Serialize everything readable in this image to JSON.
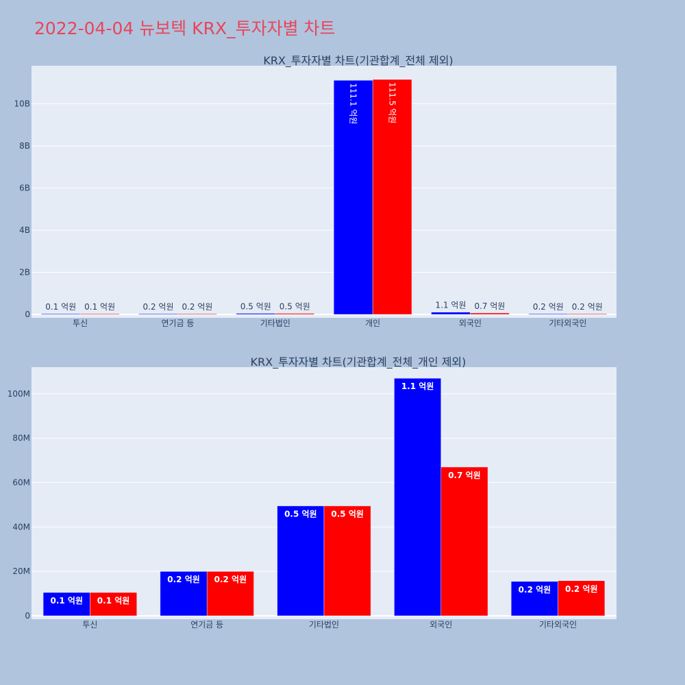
{
  "page_title": "2022-04-04 뉴보텍 KRX_투자자별 차트",
  "colors": {
    "page_background": "#b0c4de",
    "plot_background": "#e5ecf6",
    "title": "#e8455a",
    "text": "#2a3f5f",
    "series_buy": "#0000ff",
    "series_sell": "#ff0000"
  },
  "chart_data": [
    {
      "type": "bar",
      "title": "KRX_투자자별 차트(기관합계_전체 제외)",
      "categories": [
        "투신",
        "연기금 등",
        "기타법인",
        "개인",
        "외국인",
        "기타외국인"
      ],
      "series": [
        {
          "color": "#0000ff",
          "values": [
            10000000,
            20000000,
            49000000,
            11110000000,
            107000000,
            15000000
          ],
          "labels": [
            "0.1 억원",
            "0.2 억원",
            "0.5 억원",
            "111.1 억원",
            "1.1 억원",
            "0.2 억원"
          ]
        },
        {
          "color": "#ff0000",
          "values": [
            10000000,
            20000000,
            49000000,
            11150000000,
            67000000,
            16000000
          ],
          "labels": [
            "0.1 억원",
            "0.2 억원",
            "0.5 억원",
            "111.5 억원",
            "0.7 억원",
            "0.2 억원"
          ]
        }
      ],
      "ylim": [
        0,
        11800000000
      ],
      "yticks": [
        0,
        2000000000,
        4000000000,
        6000000000,
        8000000000,
        10000000000
      ],
      "ytick_labels": [
        "0",
        "2B",
        "4B",
        "6B",
        "8B",
        "10B"
      ],
      "grid": true,
      "legend": "none"
    },
    {
      "type": "bar",
      "title": "KRX_투자자별 차트(기관합계_전체_개인 제외)",
      "categories": [
        "투신",
        "연기금 등",
        "기타법인",
        "외국인",
        "기타외국인"
      ],
      "series": [
        {
          "color": "#0000ff",
          "values": [
            10500000,
            20000000,
            49500000,
            107000000,
            15500000
          ],
          "labels": [
            "0.1 억원",
            "0.2 억원",
            "0.5 억원",
            "1.1 억원",
            "0.2 억원"
          ]
        },
        {
          "color": "#ff0000",
          "values": [
            10500000,
            20000000,
            49500000,
            67000000,
            15800000
          ],
          "labels": [
            "0.1 억원",
            "0.2 억원",
            "0.5 억원",
            "0.7 억원",
            "0.2 억원"
          ]
        }
      ],
      "ylim": [
        0,
        112000000
      ],
      "yticks": [
        0,
        20000000,
        40000000,
        60000000,
        80000000,
        100000000
      ],
      "ytick_labels": [
        "0",
        "20M",
        "40M",
        "60M",
        "80M",
        "100M"
      ],
      "grid": true,
      "legend": "none"
    }
  ]
}
